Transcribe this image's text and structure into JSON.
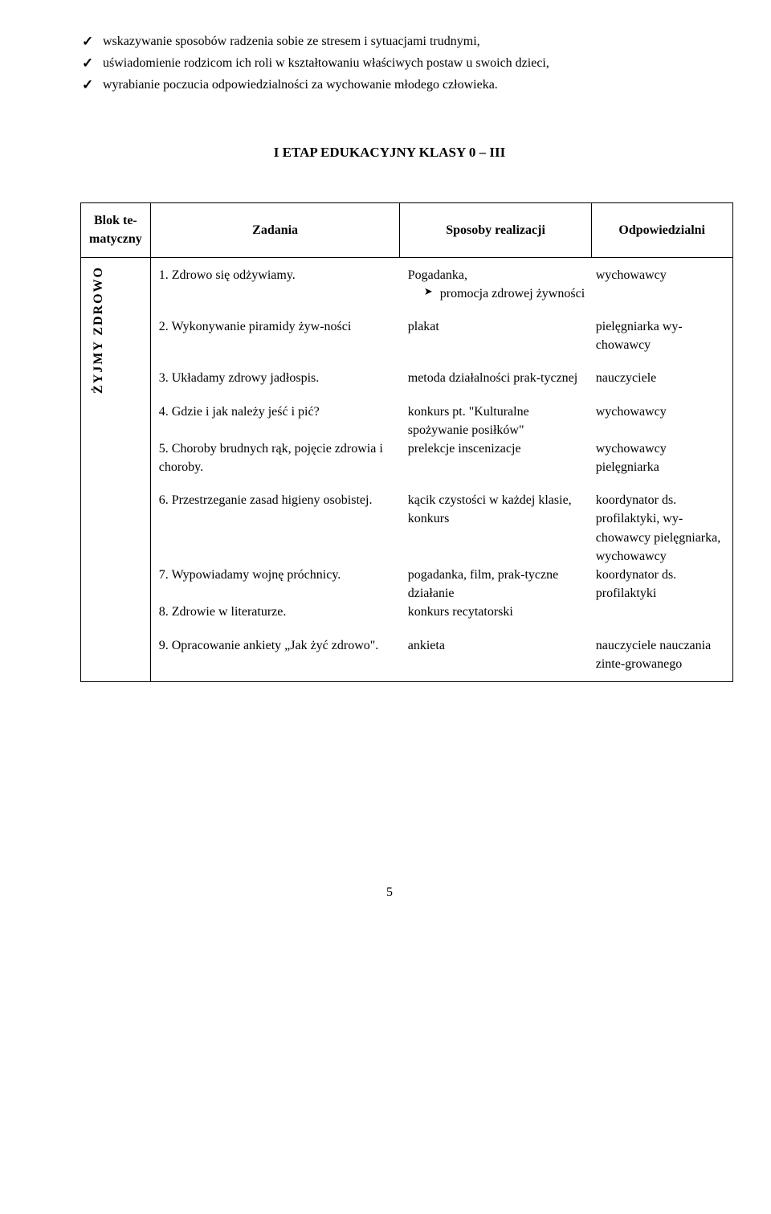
{
  "bullets": [
    "wskazywanie sposobów radzenia sobie ze stresem i sytuacjami trudnymi,",
    "uświadomienie rodzicom ich roli w kształtowaniu właściwych postaw u swoich dzieci,",
    "wyrabianie poczucia odpowiedzialności za wychowanie młodego człowieka."
  ],
  "section_title": "I ETAP EDUKACYJNY KLASY 0 – III",
  "headers": {
    "block": "Blok te-matyczny",
    "tasks": "Zadania",
    "methods": "Sposoby realizacji",
    "responsible": "Odpowiedzialni"
  },
  "block_label": "ŻYJMY ZDROWO",
  "rows": [
    {
      "task": "1. Zdrowo się odżywiamy.",
      "method_plain": "Pogadanka,",
      "method_items": [
        "promocja zdrowej żywności"
      ],
      "resp": "wychowawcy"
    },
    {
      "task": "2. Wykonywanie piramidy   żyw-ności",
      "method_plain": "plakat",
      "method_items": [],
      "resp": "pielęgniarka wy-chowawcy"
    },
    {
      "task": "3. Układamy zdrowy jadłospis.",
      "method_plain": "metoda działalności prak-tycznej",
      "method_items": [],
      "resp": "nauczyciele"
    },
    {
      "task": "4. Gdzie i jak należy jeść i pić?",
      "method_plain": "konkurs pt. \"Kulturalne spożywanie posiłków\"",
      "method_items": [],
      "resp": "wychowawcy"
    },
    {
      "task": "5. Choroby brudnych rąk, pojęcie zdrowia i choroby.",
      "method_plain": "prelekcje inscenizacje",
      "method_items": [],
      "resp": "wychowawcy pielęgniarka"
    },
    {
      "task": "6. Przestrzeganie zasad higieny osobistej.",
      "method_plain": "kącik czystości w każdej klasie, konkurs",
      "method_items": [],
      "resp": "koordynator ds. profilaktyki, wy-chowawcy pielęgniarka, wychowawcy"
    },
    {
      "task": "7. Wypowiadamy wojnę próchnicy.",
      "method_plain": "pogadanka, film, prak-tyczne działanie",
      "method_items": [],
      "resp": "koordynator ds. profilaktyki"
    },
    {
      "task": "8. Zdrowie w literaturze.",
      "method_plain": "konkurs recytatorski",
      "method_items": [],
      "resp": ""
    },
    {
      "task": "9. Opracowanie ankiety „Jak żyć zdrowo\".",
      "method_plain": "ankieta",
      "method_items": [],
      "resp": "nauczyciele nauczania zinte-growanego"
    }
  ],
  "page_number": "5"
}
